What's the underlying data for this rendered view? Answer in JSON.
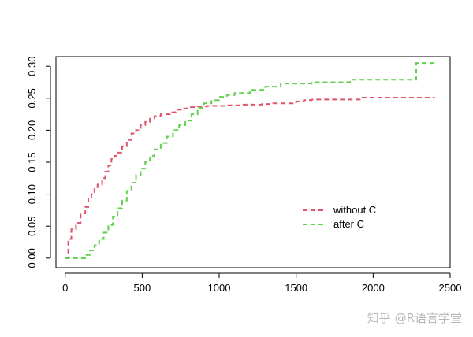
{
  "chart_data": {
    "type": "line",
    "step": true,
    "line_style": "dashed",
    "xlim": [
      -60,
      2500
    ],
    "ylim": [
      -0.015,
      0.315
    ],
    "x_ticks": [
      0,
      500,
      1000,
      1500,
      2000,
      2500
    ],
    "y_ticks": [
      0.0,
      0.05,
      0.1,
      0.15,
      0.2,
      0.25,
      0.3
    ],
    "x_tick_labels": [
      "0",
      "500",
      "1000",
      "1500",
      "2000",
      "2500"
    ],
    "y_tick_labels": [
      "0.00",
      "0.05",
      "0.10",
      "0.15",
      "0.20",
      "0.25",
      "0.30"
    ],
    "title": "",
    "xlabel": "",
    "ylabel": "",
    "grid": false,
    "legend_position": "center-right",
    "series": [
      {
        "name": "without C",
        "color": "#DF536B",
        "x": [
          0,
          20,
          40,
          70,
          100,
          130,
          150,
          170,
          190,
          210,
          240,
          260,
          280,
          300,
          320,
          340,
          370,
          400,
          430,
          460,
          490,
          520,
          550,
          580,
          620,
          680,
          720,
          760,
          800,
          860,
          920,
          1050,
          1150,
          1280,
          1350,
          1500,
          1550,
          1600,
          1920,
          2400
        ],
        "y": [
          0.0,
          0.03,
          0.045,
          0.055,
          0.07,
          0.08,
          0.095,
          0.1,
          0.108,
          0.115,
          0.125,
          0.135,
          0.145,
          0.155,
          0.16,
          0.165,
          0.175,
          0.185,
          0.195,
          0.2,
          0.208,
          0.213,
          0.218,
          0.222,
          0.225,
          0.228,
          0.232,
          0.234,
          0.236,
          0.237,
          0.238,
          0.239,
          0.24,
          0.241,
          0.242,
          0.245,
          0.247,
          0.248,
          0.251,
          0.251
        ]
      },
      {
        "name": "after C",
        "color": "#61D04F",
        "x": [
          0,
          100,
          130,
          160,
          190,
          220,
          250,
          280,
          310,
          340,
          370,
          400,
          430,
          460,
          490,
          520,
          550,
          580,
          620,
          660,
          700,
          740,
          780,
          820,
          860,
          900,
          950,
          1000,
          1050,
          1100,
          1200,
          1300,
          1400,
          1600,
          1850,
          2280,
          2400
        ],
        "y": [
          0.0,
          0.0,
          0.005,
          0.012,
          0.02,
          0.03,
          0.04,
          0.052,
          0.065,
          0.078,
          0.09,
          0.105,
          0.118,
          0.13,
          0.14,
          0.15,
          0.16,
          0.17,
          0.18,
          0.19,
          0.2,
          0.208,
          0.215,
          0.225,
          0.235,
          0.242,
          0.247,
          0.252,
          0.255,
          0.258,
          0.263,
          0.268,
          0.273,
          0.275,
          0.279,
          0.305,
          0.305
        ]
      }
    ]
  },
  "watermark": "知乎 @R语言学堂"
}
